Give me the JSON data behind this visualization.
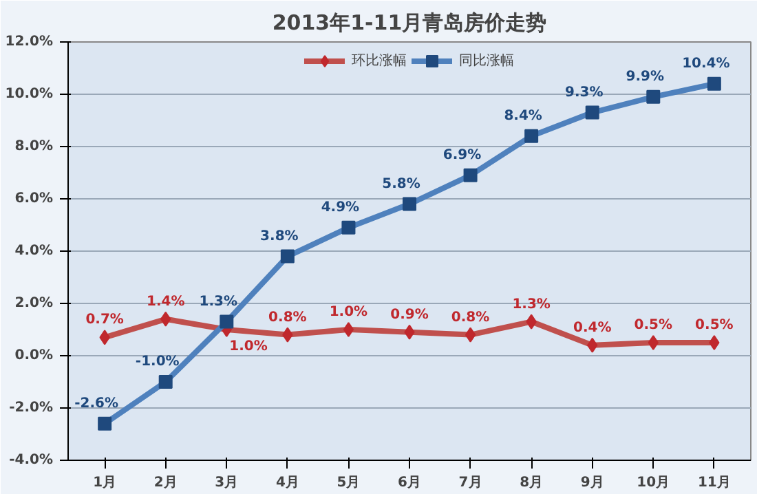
{
  "chart_data": {
    "type": "line",
    "title": "2013年1-11月青岛房价走势",
    "categories": [
      "1月",
      "2月",
      "3月",
      "4月",
      "5月",
      "6月",
      "7月",
      "8月",
      "9月",
      "10月",
      "11月"
    ],
    "series": [
      {
        "name": "环比涨幅",
        "color": "#c0504d",
        "marker": "diamond",
        "values": [
          0.7,
          1.4,
          1.0,
          0.8,
          1.0,
          0.9,
          0.8,
          1.3,
          0.4,
          0.5,
          0.5
        ],
        "value_labels": [
          "0.7%",
          "1.4%",
          "1.0%",
          "0.8%",
          "1.0%",
          "0.9%",
          "0.8%",
          "1.3%",
          "0.4%",
          "0.5%",
          "0.5%"
        ]
      },
      {
        "name": "同比涨幅",
        "color": "#4f81bd",
        "marker": "square",
        "values": [
          -2.6,
          -1.0,
          1.3,
          3.8,
          4.9,
          5.8,
          6.9,
          8.4,
          9.3,
          9.9,
          10.4
        ],
        "value_labels": [
          "-2.6%",
          "-1.0%",
          "1.3%",
          "3.8%",
          "4.9%",
          "5.8%",
          "6.9%",
          "8.4%",
          "9.3%",
          "9.9%",
          "10.4%"
        ]
      }
    ],
    "ylim": [
      -4,
      12
    ],
    "yticks": [
      {
        "value": -4,
        "label": "-4.0%"
      },
      {
        "value": -2,
        "label": "-2.0%"
      },
      {
        "value": 0,
        "label": "0.0%"
      },
      {
        "value": 2,
        "label": "2.0%"
      },
      {
        "value": 4,
        "label": "4.0%"
      },
      {
        "value": 6,
        "label": "6.0%"
      },
      {
        "value": 8,
        "label": "8.0%"
      },
      {
        "value": 10,
        "label": "10.0%"
      },
      {
        "value": 12,
        "label": "12.0%"
      }
    ],
    "grid": "y",
    "legend": "top",
    "line_style": "solid"
  }
}
